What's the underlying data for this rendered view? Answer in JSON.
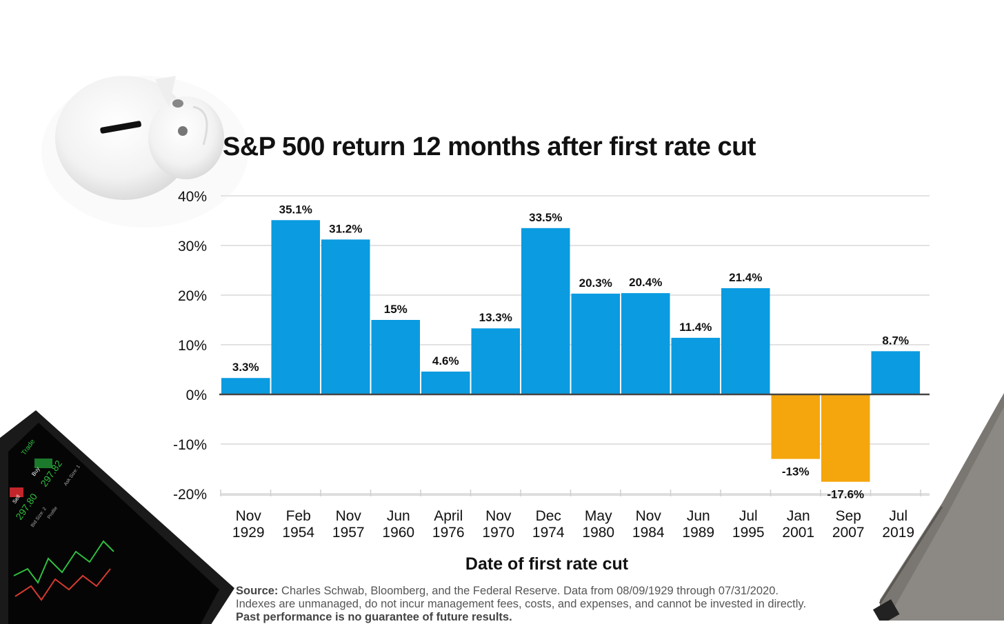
{
  "chart_data": {
    "type": "bar",
    "title": "S&P 500 return 12 months after first rate cut",
    "xlabel": "Date of first rate cut",
    "ylabel": "",
    "ylim": [
      -20,
      40
    ],
    "yticks": [
      40,
      30,
      20,
      10,
      0,
      -10,
      -20
    ],
    "ytick_labels": [
      "40%",
      "30%",
      "20%",
      "10%",
      "0%",
      "-10%",
      "-20%"
    ],
    "categories": [
      [
        "Nov",
        "1929"
      ],
      [
        "Feb",
        "1954"
      ],
      [
        "Nov",
        "1957"
      ],
      [
        "Jun",
        "1960"
      ],
      [
        "April",
        "1976"
      ],
      [
        "Nov",
        "1970"
      ],
      [
        "Dec",
        "1974"
      ],
      [
        "May",
        "1980"
      ],
      [
        "Nov",
        "1984"
      ],
      [
        "Jun",
        "1989"
      ],
      [
        "Jul",
        "1995"
      ],
      [
        "Jan",
        "2001"
      ],
      [
        "Sep",
        "2007"
      ],
      [
        "Jul",
        "2019"
      ]
    ],
    "values": [
      3.3,
      35.1,
      31.2,
      15,
      4.6,
      13.3,
      33.5,
      20.3,
      20.4,
      11.4,
      21.4,
      -13,
      -17.6,
      8.7
    ],
    "value_labels": [
      "3.3%",
      "35.1%",
      "31.2%",
      "15%",
      "4.6%",
      "13.3%",
      "33.5%",
      "20.3%",
      "20.4%",
      "11.4%",
      "21.4%",
      "-13%",
      "-17.6%",
      "8.7%"
    ],
    "colors": {
      "positive": "#0a9be0",
      "negative": "#f4a60c"
    },
    "grid": true,
    "legend": "none"
  },
  "source": {
    "label": "Source:",
    "text": "Charles Schwab, Bloomberg, and the Federal Reserve. Data from 08/09/1929 through 07/31/2020.",
    "line2": "Indexes are unmanaged, do not incur management fees, costs, and expenses, and cannot be invested in directly.",
    "disclaimer": "Past performance is no guarantee of future results."
  },
  "tablet": {
    "screen_texts": [
      "Trade",
      "Buy",
      "Sell",
      "297.82",
      "297.80",
      "Ask Size: 1",
      "Bid Size: 2",
      "Profile"
    ]
  }
}
